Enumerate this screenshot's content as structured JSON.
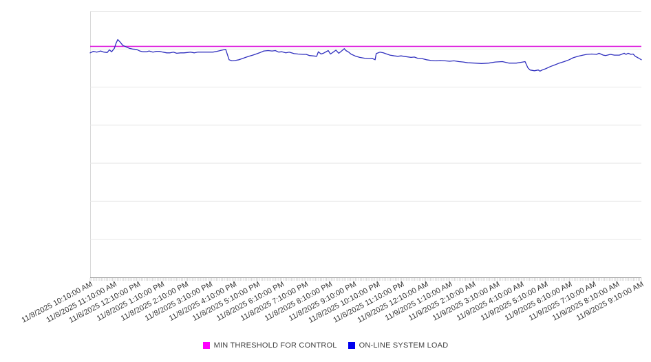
{
  "chart_data": {
    "type": "line",
    "title": "",
    "xlabel": "",
    "ylabel": "",
    "legend_position": "bottom",
    "grid": "horizontal",
    "y_axis": {
      "labels_visible": false,
      "gridline_divisions": 7,
      "ylim": [
        0,
        7
      ]
    },
    "x_axis": {
      "label_rotation_deg": -28,
      "minor_tick_count": 346,
      "tick_labels": [
        "11/8/2025 10:10:00 AM",
        "11/8/2025 11:10:00 AM",
        "11/8/2025 12:10:00 PM",
        "11/8/2025 1:10:00 PM",
        "11/8/2025 2:10:00 PM",
        "11/8/2025 3:10:00 PM",
        "11/8/2025 4:10:00 PM",
        "11/8/2025 5:10:00 PM",
        "11/8/2025 6:10:00 PM",
        "11/8/2025 7:10:00 PM",
        "11/8/2025 8:10:00 PM",
        "11/8/2025 9:10:00 PM",
        "11/8/2025 10:10:00 PM",
        "11/8/2025 11:10:00 PM",
        "11/9/2025 12:10:00 AM",
        "11/9/2025 1:10:00 AM",
        "11/9/2025 2:10:00 AM",
        "11/9/2025 3:10:00 AM",
        "11/9/2025 4:10:00 AM",
        "11/9/2025 5:10:00 AM",
        "11/9/2025 6:10:00 AM",
        "11/9/2025 7:10:00 AM",
        "11/9/2025 8:10:00 AM",
        "11/9/2025 9:10:00 AM"
      ]
    },
    "legend": [
      {
        "label": "MIN THRESHOLD FOR CONTROL",
        "color": "#FF00FF"
      },
      {
        "label": "ON-LINE SYSTEM LOAD",
        "color": "#0000EE"
      }
    ],
    "series": [
      {
        "name": "MIN THRESHOLD FOR CONTROL",
        "type": "horizontal-threshold",
        "line_color": "#DE21DE",
        "value": 6.07
      },
      {
        "name": "ON-LINE SYSTEM LOAD",
        "type": "line",
        "line_color": "#2F2FBE",
        "x_unit": "fraction of x-range (11/8/2025 ~10:10 AM to 11/9/2025 ~9:10 AM)",
        "y_unit": "gridline units (y axis unlabeled, 0 = bottom axis, 7 = top border)",
        "points": [
          [
            0,
            5.9
          ],
          [
            0.006,
            5.94
          ],
          [
            0.012,
            5.92
          ],
          [
            0.019,
            5.95
          ],
          [
            0.025,
            5.92
          ],
          [
            0.031,
            5.91
          ],
          [
            0.035,
            5.98
          ],
          [
            0.039,
            5.93
          ],
          [
            0.044,
            6.02
          ],
          [
            0.047,
            6.15
          ],
          [
            0.05,
            6.25
          ],
          [
            0.054,
            6.19
          ],
          [
            0.059,
            6.1
          ],
          [
            0.065,
            6.06
          ],
          [
            0.071,
            6.02
          ],
          [
            0.077,
            6.0
          ],
          [
            0.084,
            5.99
          ],
          [
            0.09,
            5.95
          ],
          [
            0.096,
            5.93
          ],
          [
            0.102,
            5.93
          ],
          [
            0.107,
            5.95
          ],
          [
            0.114,
            5.92
          ],
          [
            0.12,
            5.94
          ],
          [
            0.126,
            5.94
          ],
          [
            0.132,
            5.92
          ],
          [
            0.139,
            5.9
          ],
          [
            0.145,
            5.9
          ],
          [
            0.151,
            5.92
          ],
          [
            0.157,
            5.89
          ],
          [
            0.164,
            5.9
          ],
          [
            0.17,
            5.9
          ],
          [
            0.176,
            5.91
          ],
          [
            0.182,
            5.92
          ],
          [
            0.189,
            5.9
          ],
          [
            0.195,
            5.92
          ],
          [
            0.201,
            5.92
          ],
          [
            0.207,
            5.92
          ],
          [
            0.213,
            5.92
          ],
          [
            0.22,
            5.92
          ],
          [
            0.223,
            5.92
          ],
          [
            0.23,
            5.94
          ],
          [
            0.236,
            5.96
          ],
          [
            0.242,
            5.98
          ],
          [
            0.246,
            5.99
          ],
          [
            0.252,
            5.72
          ],
          [
            0.257,
            5.69
          ],
          [
            0.263,
            5.7
          ],
          [
            0.27,
            5.72
          ],
          [
            0.276,
            5.75
          ],
          [
            0.282,
            5.78
          ],
          [
            0.288,
            5.81
          ],
          [
            0.295,
            5.84
          ],
          [
            0.301,
            5.87
          ],
          [
            0.307,
            5.9
          ],
          [
            0.315,
            5.95
          ],
          [
            0.323,
            5.96
          ],
          [
            0.33,
            5.95
          ],
          [
            0.336,
            5.96
          ],
          [
            0.342,
            5.92
          ],
          [
            0.348,
            5.93
          ],
          [
            0.355,
            5.9
          ],
          [
            0.361,
            5.92
          ],
          [
            0.37,
            5.88
          ],
          [
            0.377,
            5.87
          ],
          [
            0.386,
            5.86
          ],
          [
            0.392,
            5.86
          ],
          [
            0.398,
            5.83
          ],
          [
            0.404,
            5.82
          ],
          [
            0.411,
            5.81
          ],
          [
            0.414,
            5.93
          ],
          [
            0.419,
            5.87
          ],
          [
            0.423,
            5.89
          ],
          [
            0.432,
            5.96
          ],
          [
            0.436,
            5.87
          ],
          [
            0.442,
            5.93
          ],
          [
            0.446,
            5.97
          ],
          [
            0.451,
            5.89
          ],
          [
            0.457,
            5.96
          ],
          [
            0.461,
            6.01
          ],
          [
            0.464,
            5.96
          ],
          [
            0.469,
            5.92
          ],
          [
            0.473,
            5.87
          ],
          [
            0.482,
            5.81
          ],
          [
            0.489,
            5.78
          ],
          [
            0.498,
            5.76
          ],
          [
            0.507,
            5.75
          ],
          [
            0.511,
            5.76
          ],
          [
            0.517,
            5.72
          ],
          [
            0.519,
            5.88
          ],
          [
            0.526,
            5.92
          ],
          [
            0.532,
            5.9
          ],
          [
            0.538,
            5.87
          ],
          [
            0.544,
            5.84
          ],
          [
            0.552,
            5.82
          ],
          [
            0.558,
            5.81
          ],
          [
            0.564,
            5.82
          ],
          [
            0.573,
            5.8
          ],
          [
            0.582,
            5.78
          ],
          [
            0.588,
            5.79
          ],
          [
            0.594,
            5.76
          ],
          [
            0.602,
            5.75
          ],
          [
            0.61,
            5.72
          ],
          [
            0.619,
            5.7
          ],
          [
            0.627,
            5.69
          ],
          [
            0.635,
            5.7
          ],
          [
            0.644,
            5.69
          ],
          [
            0.652,
            5.68
          ],
          [
            0.66,
            5.69
          ],
          [
            0.669,
            5.67
          ],
          [
            0.677,
            5.66
          ],
          [
            0.685,
            5.64
          ],
          [
            0.698,
            5.63
          ],
          [
            0.71,
            5.62
          ],
          [
            0.723,
            5.63
          ],
          [
            0.735,
            5.66
          ],
          [
            0.748,
            5.67
          ],
          [
            0.76,
            5.63
          ],
          [
            0.773,
            5.63
          ],
          [
            0.785,
            5.66
          ],
          [
            0.789,
            5.67
          ],
          [
            0.794,
            5.51
          ],
          [
            0.798,
            5.45
          ],
          [
            0.806,
            5.43
          ],
          [
            0.813,
            5.45
          ],
          [
            0.816,
            5.42
          ],
          [
            0.82,
            5.45
          ],
          [
            0.826,
            5.48
          ],
          [
            0.835,
            5.54
          ],
          [
            0.844,
            5.59
          ],
          [
            0.851,
            5.63
          ],
          [
            0.86,
            5.67
          ],
          [
            0.869,
            5.72
          ],
          [
            0.876,
            5.77
          ],
          [
            0.885,
            5.81
          ],
          [
            0.894,
            5.84
          ],
          [
            0.901,
            5.86
          ],
          [
            0.91,
            5.87
          ],
          [
            0.919,
            5.86
          ],
          [
            0.923,
            5.89
          ],
          [
            0.931,
            5.84
          ],
          [
            0.935,
            5.83
          ],
          [
            0.944,
            5.86
          ],
          [
            0.951,
            5.84
          ],
          [
            0.96,
            5.84
          ],
          [
            0.969,
            5.89
          ],
          [
            0.972,
            5.86
          ],
          [
            0.976,
            5.89
          ],
          [
            0.981,
            5.86
          ],
          [
            0.985,
            5.87
          ],
          [
            0.989,
            5.81
          ],
          [
            0.994,
            5.77
          ],
          [
            1,
            5.72
          ]
        ]
      }
    ],
    "axis_colors": {
      "gridline": "#E7E7E7",
      "plot_border": "#D9D9D9",
      "x_axis_line": "#9B9B9B",
      "tick": "#C9C9C9",
      "label_text": "#2F2F2F"
    }
  }
}
